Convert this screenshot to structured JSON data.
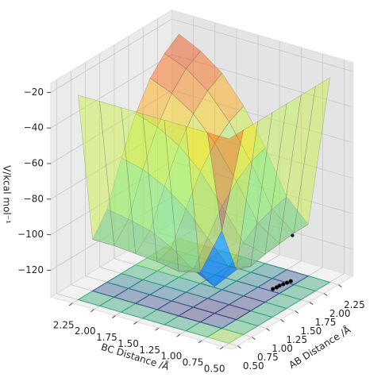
{
  "chart_data": {
    "type": "surface3d",
    "xlabel": "AB Distance /Å",
    "ylabel": "BC Distance /Å",
    "zlabel": "V/kcal mol⁻¹",
    "xlim": [
      0.4,
      2.5
    ],
    "ylim": [
      0.4,
      2.5
    ],
    "zlim": [
      -135,
      -15
    ],
    "xticks": [
      {
        "value": 0.5,
        "label": "0.50"
      },
      {
        "value": 0.75,
        "label": "0.75"
      },
      {
        "value": 1.0,
        "label": "1.00"
      },
      {
        "value": 1.25,
        "label": "1.25"
      },
      {
        "value": 1.5,
        "label": "1.50"
      },
      {
        "value": 1.75,
        "label": "1.75"
      },
      {
        "value": 2.0,
        "label": "2.00"
      },
      {
        "value": 2.25,
        "label": "2.25"
      }
    ],
    "yticks": [
      {
        "value": 0.5,
        "label": "0.50"
      },
      {
        "value": 0.75,
        "label": "0.75"
      },
      {
        "value": 1.0,
        "label": "1.00"
      },
      {
        "value": 1.25,
        "label": "1.25"
      },
      {
        "value": 1.5,
        "label": "1.50"
      },
      {
        "value": 1.75,
        "label": "1.75"
      },
      {
        "value": 2.0,
        "label": "2.00"
      },
      {
        "value": 2.25,
        "label": "2.25"
      }
    ],
    "zticks": [
      {
        "value": -20,
        "label": "−20"
      },
      {
        "value": -40,
        "label": "−40"
      },
      {
        "value": -60,
        "label": "−60"
      },
      {
        "value": -80,
        "label": "−80"
      },
      {
        "value": -100,
        "label": "−100"
      },
      {
        "value": -120,
        "label": "−120"
      }
    ],
    "x": [
      0.5,
      0.75,
      1.0,
      1.25,
      1.5,
      1.75,
      2.0,
      2.25
    ],
    "y": [
      0.5,
      0.75,
      1.0,
      1.25,
      1.5,
      1.75,
      2.0,
      2.25
    ],
    "z": [
      [
        -20,
        -20,
        -20,
        -20,
        -20,
        -20,
        -20,
        -20
      ],
      [
        -20,
        -80,
        -107,
        -110,
        -108,
        -107,
        -106,
        -106
      ],
      [
        -20,
        -107,
        -120,
        -114,
        -105,
        -99,
        -96,
        -94
      ],
      [
        -20,
        -110,
        -114,
        -101,
        -88,
        -79,
        -73,
        -70
      ],
      [
        -20,
        -108,
        -105,
        -88,
        -72,
        -61,
        -54,
        -50
      ],
      [
        -20,
        -107,
        -99,
        -79,
        -61,
        -48,
        -40,
        -35
      ],
      [
        -20,
        -106,
        -96,
        -73,
        -54,
        -40,
        -31,
        -26
      ],
      [
        -20,
        -106,
        -94,
        -70,
        -50,
        -35,
        -26,
        -20
      ]
    ],
    "trajectory": {
      "x": [
        1.8,
        1.85,
        1.9,
        1.95,
        2.0,
        2.05
      ],
      "y": [
        0.86,
        0.85,
        0.85,
        0.84,
        0.83,
        0.82
      ]
    },
    "point": {
      "x": 2.05,
      "y": 0.8,
      "z": -109
    }
  }
}
